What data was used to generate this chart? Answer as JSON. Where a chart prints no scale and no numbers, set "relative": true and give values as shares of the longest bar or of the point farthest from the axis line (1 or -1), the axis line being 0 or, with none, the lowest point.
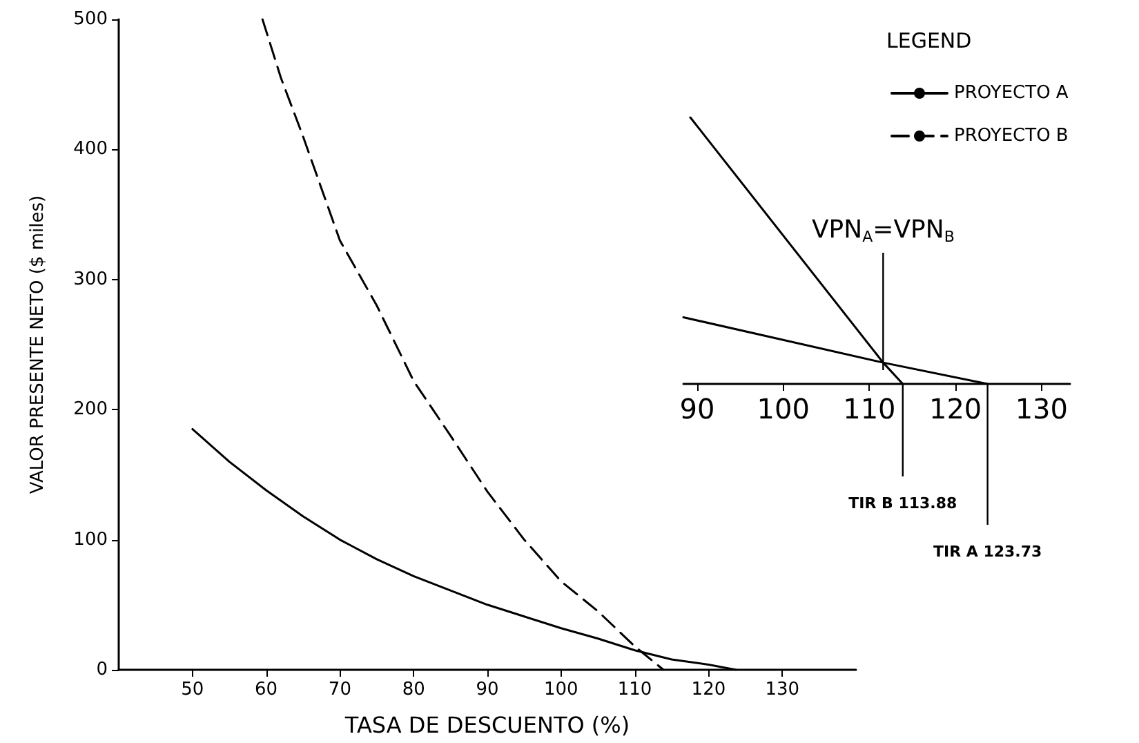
{
  "chart_data": [
    {
      "type": "line",
      "xlabel": "TASA DE DESCUENTO (%)",
      "ylabel": "VALOR PRESENTE NETO ($ miles)",
      "legend_title": "LEGEND",
      "legend": "top right",
      "grid": false,
      "marker": "none",
      "xlim": [
        40,
        140
      ],
      "xticks": [
        50,
        60,
        70,
        80,
        90,
        100,
        110,
        120,
        130
      ],
      "ylim": [
        0,
        500
      ],
      "yticks": [
        0,
        100,
        200,
        300,
        400,
        500
      ],
      "series": [
        {
          "name": "PROYECTO A",
          "color": "#000000",
          "line_style": "solid",
          "x": [
            50,
            55,
            60,
            65,
            70,
            75,
            80,
            85,
            90,
            95,
            100,
            105,
            110,
            115,
            120,
            123.73
          ],
          "values": [
            185,
            160,
            138,
            118,
            100,
            85,
            72,
            61,
            50,
            41,
            32,
            24,
            15,
            8,
            4,
            0
          ]
        },
        {
          "name": "PROYECTO B",
          "color": "#000000",
          "line_style": "dashed",
          "x": [
            59.5,
            62,
            65,
            70,
            75,
            80,
            85,
            90,
            95,
            100,
            105,
            110,
            113.88
          ],
          "values": [
            500,
            455,
            410,
            330,
            280,
            222,
            180,
            137,
            100,
            68,
            45,
            18,
            0
          ]
        }
      ]
    },
    {
      "type": "line",
      "relative": true,
      "marker": "none",
      "tick_labels": "x",
      "xlim": [
        88.4,
        133.3
      ],
      "xticks": [
        90,
        100,
        110,
        120,
        130
      ],
      "series": [
        {
          "color": "#000000",
          "x": [
            88.4,
            111.6,
            123.73
          ],
          "values": [
            0.25,
            0.08,
            0
          ]
        },
        {
          "color": "#000000",
          "x": [
            89.2,
            111.6,
            113.88
          ],
          "values": [
            1,
            0.08,
            0
          ]
        }
      ],
      "ref_lines": [
        {
          "axis": "x",
          "value": 111.6,
          "label": "VPN$_{A}$=VPN$_{B}$"
        },
        {
          "axis": "x",
          "value": 113.88,
          "label": "TIR B 113.88"
        },
        {
          "axis": "x",
          "value": 123.73,
          "label": "TIR A 123.73"
        }
      ]
    }
  ]
}
